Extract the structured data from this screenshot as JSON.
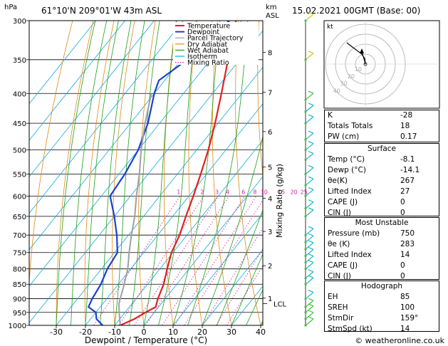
{
  "header": {
    "hpa": "hPa",
    "location": "61°10'N  209°01'W  43m  ASL",
    "km": "km",
    "asl": "ASL",
    "datetime": "15.02.2021  00GMT  (Base: 00)"
  },
  "legend": [
    "Temperature",
    "Dewpoint",
    "Parcel Trajectory",
    "Dry Adiabat",
    "Wet Adiabat",
    "Isotherm",
    "Mixing Ratio"
  ],
  "colors": {
    "temperature": "#e02020",
    "dewpoint": "#1a3fd6",
    "parcel": "#a0a0a0",
    "dry_adiabat": "#e08a10",
    "wet_adiabat": "#1aa01a",
    "isotherm": "#10a8e0",
    "mixing_ratio": "#d020b0",
    "wind": "#18b8c8"
  },
  "chart_data": {
    "type": "line",
    "title": "",
    "xlabel": "Dewpoint / Temperature (°C)",
    "ylabel": "",
    "right_label": "Mixing Ratio (g/kg)",
    "x_ticks": [
      -30,
      -20,
      -10,
      0,
      10,
      20,
      30,
      40
    ],
    "pressure_ticks": [
      300,
      350,
      400,
      450,
      500,
      550,
      600,
      650,
      700,
      750,
      800,
      850,
      900,
      950,
      1000
    ],
    "km_ticks": [
      {
        "label": "8",
        "p": 340
      },
      {
        "label": "7",
        "p": 398
      },
      {
        "label": "6",
        "p": 465
      },
      {
        "label": "5",
        "p": 535
      },
      {
        "label": "4",
        "p": 605
      },
      {
        "label": "3",
        "p": 690
      },
      {
        "label": "2",
        "p": 790
      },
      {
        "label": "1",
        "p": 898
      }
    ],
    "lcl_label": "LCL",
    "lcl_p": 918,
    "mixing_ratio_labels": [
      "1",
      "2",
      "3",
      "4",
      "6",
      "8",
      "10",
      "15",
      "20",
      "25"
    ],
    "series": [
      {
        "name": "Temperature",
        "points": [
          [
            1000,
            -8.1
          ],
          [
            975,
            -5.0
          ],
          [
            950,
            -3.0
          ],
          [
            930,
            -1.0
          ],
          [
            900,
            -2.5
          ],
          [
            850,
            -4.5
          ],
          [
            800,
            -7.5
          ],
          [
            750,
            -10.5
          ],
          [
            700,
            -12.5
          ],
          [
            650,
            -15.5
          ],
          [
            600,
            -18.5
          ],
          [
            550,
            -22
          ],
          [
            500,
            -26
          ],
          [
            450,
            -31
          ],
          [
            400,
            -37
          ],
          [
            350,
            -44
          ],
          [
            300,
            -52
          ]
        ]
      },
      {
        "name": "Dewpoint",
        "points": [
          [
            1000,
            -14.1
          ],
          [
            975,
            -18
          ],
          [
            950,
            -20
          ],
          [
            930,
            -24
          ],
          [
            900,
            -25
          ],
          [
            850,
            -26
          ],
          [
            800,
            -28
          ],
          [
            750,
            -29
          ],
          [
            700,
            -34
          ],
          [
            650,
            -40
          ],
          [
            600,
            -47
          ],
          [
            550,
            -48
          ],
          [
            500,
            -50
          ],
          [
            450,
            -54
          ],
          [
            400,
            -60
          ],
          [
            380,
            -62
          ],
          [
            350,
            -58
          ],
          [
            330,
            -52
          ],
          [
            315,
            -48
          ],
          [
            305,
            -52
          ],
          [
            300,
            -55
          ]
        ]
      },
      {
        "name": "Parcel Trajectory",
        "points": [
          [
            1000,
            -8.1
          ],
          [
            950,
            -12
          ],
          [
            918,
            -14.5
          ],
          [
            850,
            -18
          ],
          [
            800,
            -21
          ],
          [
            750,
            -25
          ],
          [
            700,
            -29
          ],
          [
            650,
            -33
          ],
          [
            600,
            -38
          ],
          [
            550,
            -43
          ],
          [
            500,
            -49
          ],
          [
            450,
            -55
          ],
          [
            400,
            -61
          ]
        ]
      }
    ]
  },
  "hodograph": {
    "unit_label": "kt",
    "ring_labels": [
      "10",
      "20",
      "30",
      "40"
    ]
  },
  "indices": [
    {
      "label": "K",
      "value": "-28"
    },
    {
      "label": "Totals Totals",
      "value": "18"
    },
    {
      "label": "PW (cm)",
      "value": "0.17"
    }
  ],
  "surface": {
    "title": "Surface",
    "rows": [
      {
        "label": "Temp (°C)",
        "value": "-8.1"
      },
      {
        "label": "Dewp (°C)",
        "value": "-14.1"
      },
      {
        "label": "θe(K)",
        "value": "267"
      },
      {
        "label": "Lifted Index",
        "value": "27"
      },
      {
        "label": "CAPE (J)",
        "value": "0"
      },
      {
        "label": "CIN (J)",
        "value": "0"
      }
    ]
  },
  "most_unstable": {
    "title": "Most Unstable",
    "rows": [
      {
        "label": "Pressure (mb)",
        "value": "750"
      },
      {
        "label": "θe (K)",
        "value": "283"
      },
      {
        "label": "Lifted Index",
        "value": "14"
      },
      {
        "label": "CAPE (J)",
        "value": "0"
      },
      {
        "label": "CIN (J)",
        "value": "0"
      }
    ]
  },
  "hodograph_box": {
    "title": "Hodograph",
    "rows": [
      {
        "label": "EH",
        "value": "85"
      },
      {
        "label": "SREH",
        "value": "100"
      },
      {
        "label": "StmDir",
        "value": "159°"
      },
      {
        "label": "StmSpd (kt)",
        "value": "14"
      }
    ]
  },
  "footer": {
    "copyright": "© weatheronline.co.uk"
  }
}
